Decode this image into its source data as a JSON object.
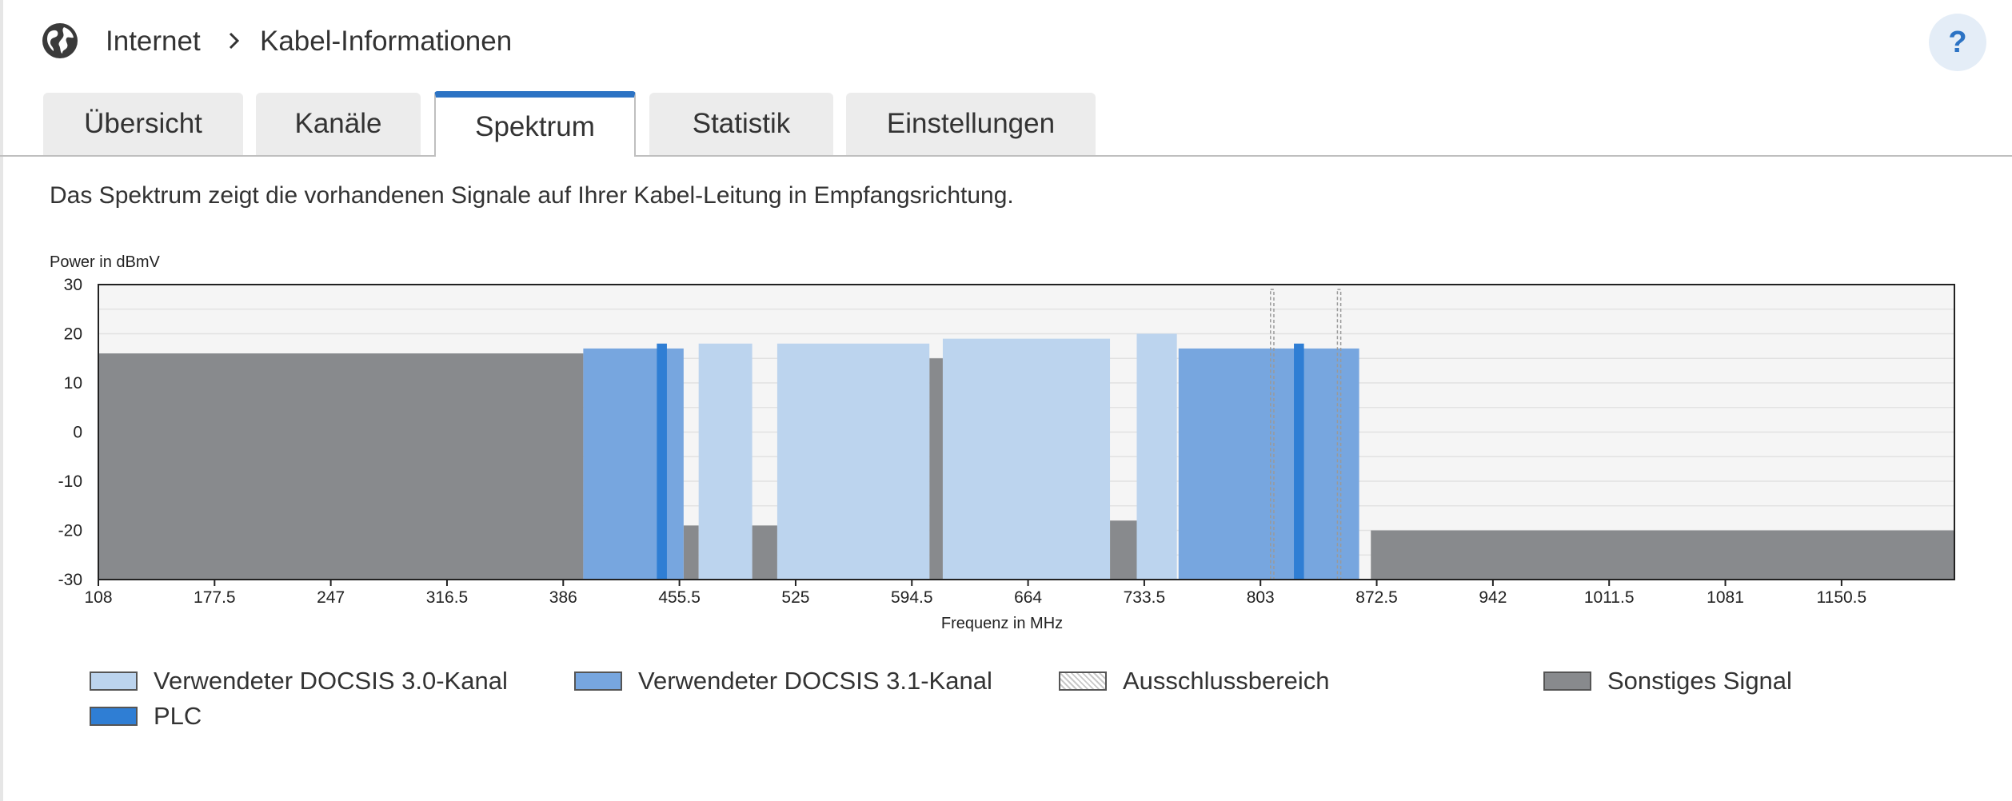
{
  "breadcrumb": {
    "section": "Internet",
    "page": "Kabel-Informationen"
  },
  "help": {
    "label": "?"
  },
  "tabs": [
    {
      "label": "Übersicht",
      "active": false
    },
    {
      "label": "Kanäle",
      "active": false
    },
    {
      "label": "Spektrum",
      "active": true
    },
    {
      "label": "Statistik",
      "active": false
    },
    {
      "label": "Einstellungen",
      "active": false
    }
  ],
  "description": "Das Spektrum zeigt die vorhandenen Signale auf Ihrer Kabel-Leitung in Empfangsrichtung.",
  "colors": {
    "docsis30": "#bcd4ee",
    "docsis31": "#77a6df",
    "plc": "#2f7ed4",
    "other": "#888a8d",
    "accent": "#2c73c4"
  },
  "chart_data": {
    "type": "area",
    "ylabel": "Power in dBmV",
    "xlabel": "Frequenz in MHz",
    "ylim": [
      -30,
      30
    ],
    "xlim": [
      108,
      1218
    ],
    "yticks": [
      "30",
      "20",
      "10",
      "0",
      "-10",
      "-20",
      "-30"
    ],
    "xticks": [
      "108",
      "177.5",
      "247",
      "316.5",
      "386",
      "455.5",
      "525",
      "594.5",
      "664",
      "733.5",
      "803",
      "872.5",
      "942",
      "1011.5",
      "1081",
      "1150.5"
    ],
    "grid": true,
    "series": [
      {
        "name": "Sonstiges Signal",
        "segments": [
          {
            "from": 108,
            "to": 398,
            "power": 16
          },
          {
            "from": 458,
            "to": 467,
            "power": -19
          },
          {
            "from": 499,
            "to": 514,
            "power": -19
          },
          {
            "from": 605,
            "to": 613,
            "power": 15
          },
          {
            "from": 713,
            "to": 729,
            "power": -18
          },
          {
            "from": 869,
            "to": 1218,
            "power": -20
          }
        ]
      },
      {
        "name": "Verwendeter DOCSIS 3.0-Kanal",
        "segments": [
          {
            "from": 467,
            "to": 499,
            "power": 18
          },
          {
            "from": 514,
            "to": 605,
            "power": 18
          },
          {
            "from": 613,
            "to": 713,
            "power": 19
          },
          {
            "from": 729,
            "to": 753,
            "power": 20
          }
        ]
      },
      {
        "name": "Verwendeter DOCSIS 3.1-Kanal",
        "segments": [
          {
            "from": 398,
            "to": 458,
            "power": 17
          },
          {
            "from": 754,
            "to": 862,
            "power": 17
          }
        ]
      },
      {
        "name": "PLC",
        "segments": [
          {
            "from": 442,
            "to": 448,
            "power": 18
          },
          {
            "from": 823,
            "to": 829,
            "power": 18
          }
        ]
      },
      {
        "name": "Ausschlussbereich",
        "segments": [
          {
            "from": 809,
            "to": 811,
            "power": 29
          },
          {
            "from": 849,
            "to": 851,
            "power": 29
          }
        ]
      }
    ]
  },
  "legend": [
    {
      "label": "Verwendeter DOCSIS 3.0-Kanal"
    },
    {
      "label": "Verwendeter DOCSIS 3.1-Kanal"
    },
    {
      "label": "Ausschlussbereich"
    },
    {
      "label": "Sonstiges Signal"
    },
    {
      "label": "PLC"
    }
  ]
}
